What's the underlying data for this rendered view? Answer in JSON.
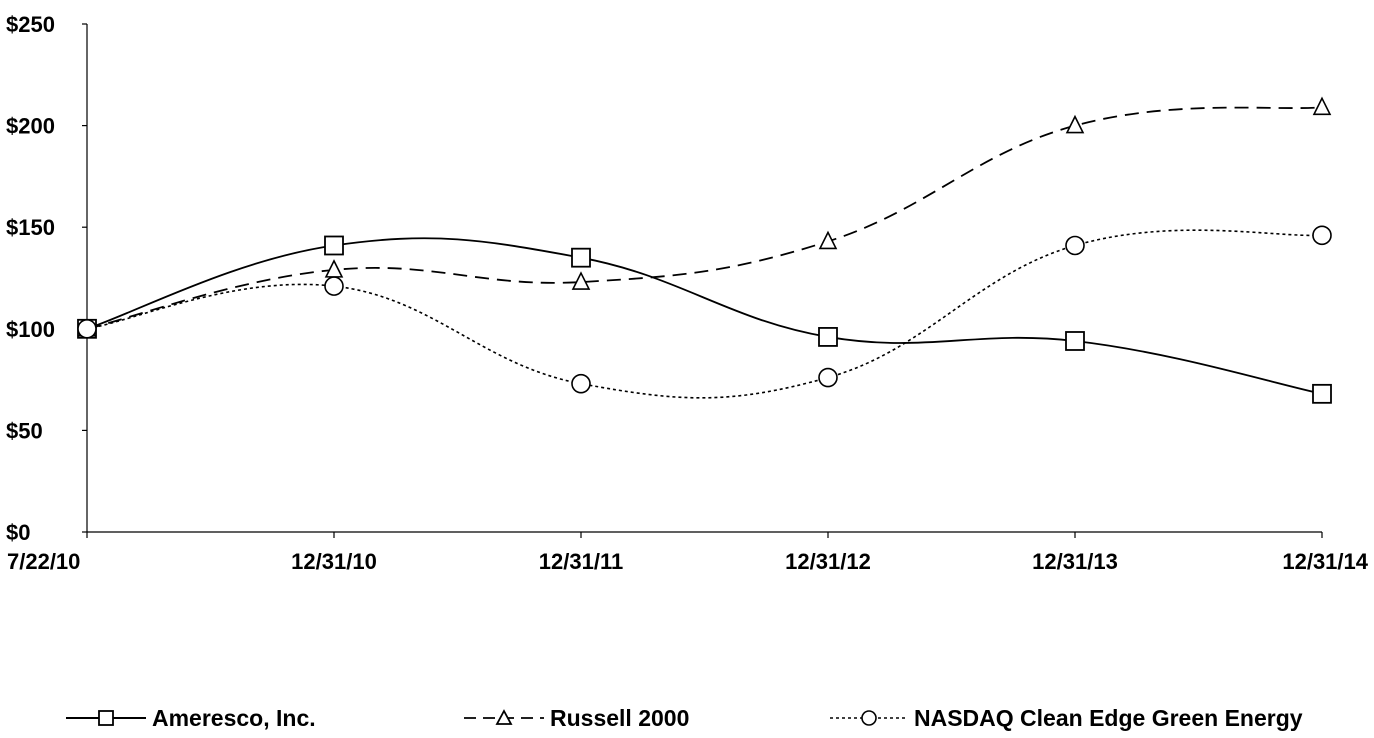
{
  "chart_data": {
    "type": "line",
    "title": "",
    "xlabel": "",
    "ylabel": "",
    "categories": [
      "7/22/10",
      "12/31/10",
      "12/31/11",
      "12/31/12",
      "12/31/13",
      "12/31/14"
    ],
    "ylim": [
      0,
      250
    ],
    "yticks": [
      0,
      50,
      100,
      150,
      200,
      250
    ],
    "ytick_labels": [
      "$0",
      "$50",
      "$100",
      "$150",
      "$200",
      "$250"
    ],
    "grid": false,
    "legend_position": "bottom",
    "series": [
      {
        "name": "Ameresco, Inc.",
        "values": [
          100,
          141,
          135,
          96,
          94,
          68
        ],
        "line_style": "solid",
        "marker": "square",
        "color": "#000000"
      },
      {
        "name": "Russell 2000",
        "values": [
          100,
          129,
          123,
          143,
          200,
          209
        ],
        "line_style": "dashed",
        "marker": "triangle",
        "color": "#000000"
      },
      {
        "name": "NASDAQ Clean Edge Green Energy",
        "values": [
          100,
          121,
          73,
          76,
          141,
          146
        ],
        "line_style": "dotted",
        "marker": "circle",
        "color": "#000000"
      }
    ]
  }
}
